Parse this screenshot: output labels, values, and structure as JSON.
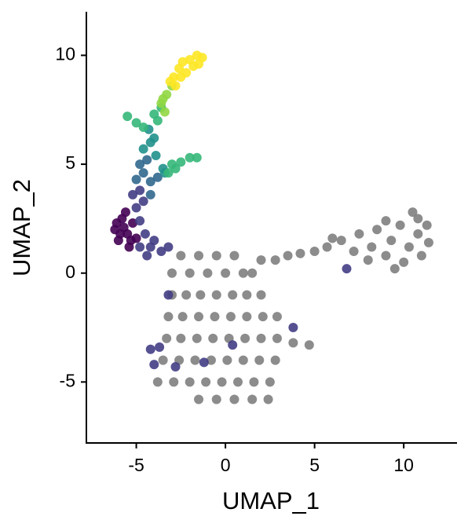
{
  "chart_data": {
    "type": "scatter",
    "x_label": "UMAP_1",
    "y_label": "UMAP_2",
    "xlim": [
      -7.8,
      12.9
    ],
    "ylim": [
      -7.8,
      12
    ],
    "xticks": [
      -5,
      0,
      5,
      10
    ],
    "yticks": [
      -5,
      0,
      5,
      10
    ],
    "grid": false,
    "series": [
      {
        "color": "#7f7f7f",
        "x": [
          -2.5,
          -1.5,
          -0.5,
          0.5,
          -3,
          -2,
          -1,
          0,
          1,
          1.5,
          -3,
          -2.2,
          -1.4,
          -0.5,
          0.4,
          1.2,
          2,
          -3.2,
          -2.4,
          -1.5,
          -0.6,
          0.3,
          1.2,
          2.1,
          2.9,
          -3.3,
          -2.5,
          -1.6,
          -0.7,
          0.2,
          1.1,
          2,
          2.9,
          3.8,
          4.7,
          -3.5,
          -2.6,
          -1.7,
          -0.8,
          0.1,
          1,
          1.9,
          2.8,
          -3.8,
          -2.9,
          -2,
          -1.1,
          -0.2,
          0.7,
          1.6,
          2.5,
          -1.5,
          -0.5,
          0.5,
          1.5,
          2.4,
          2,
          2.8,
          3.5,
          4.2,
          5,
          5.7,
          6.5,
          7.2,
          7.5,
          8.2,
          8.5,
          9,
          9.3,
          9.8,
          10,
          10.3,
          10.5,
          10.8,
          11,
          11.3,
          11.4,
          9.5,
          8,
          10.8,
          9,
          6
        ],
        "y": [
          0.8,
          0.8,
          0.8,
          0.8,
          0,
          0,
          0,
          0,
          0,
          0,
          -1,
          -1,
          -1,
          -1,
          -1,
          -1,
          -1,
          -2,
          -2,
          -2,
          -2,
          -2,
          -2,
          -2,
          -2,
          -3,
          -3,
          -3,
          -3,
          -3,
          -3,
          -3,
          -3,
          -3.2,
          -3.3,
          -4,
          -4,
          -4,
          -4,
          -4,
          -4,
          -4,
          -4,
          -5,
          -5,
          -5,
          -5,
          -5,
          -5,
          -5,
          -5,
          -5.8,
          -5.8,
          -5.8,
          -5.8,
          -5.8,
          0.6,
          0.6,
          0.8,
          0.9,
          1,
          1.2,
          1.5,
          1,
          1.8,
          1.2,
          2,
          0.8,
          1.5,
          2.2,
          0.5,
          1.2,
          2.8,
          1.8,
          0.8,
          2.2,
          1.4,
          0.2,
          0.6,
          2.5,
          2.4,
          1.6
        ]
      },
      {
        "color": "#440154",
        "x": [
          -6.2,
          -6,
          -5.8,
          -5.5,
          -5.4,
          -5.2,
          -5.9,
          -5.6,
          -5,
          -6.1,
          -5.3,
          -5.7
        ],
        "y": [
          2,
          1.5,
          2.5,
          1.8,
          1.2,
          2.3,
          1.8,
          2.8,
          1.6,
          2.3,
          1.5,
          2.1
        ]
      },
      {
        "color": "#433e85",
        "x": [
          -4.8,
          -4.5,
          -4.2,
          -4.8,
          -5,
          -4.6,
          -4,
          -3.6,
          -3.2,
          -4.4,
          -5.2,
          -4.8,
          -3.7,
          -4.2,
          -4,
          -3.2,
          -2.8,
          -1.2,
          0.4,
          3.8,
          6.8
        ],
        "y": [
          1.2,
          1.8,
          1.2,
          2.4,
          3,
          3.3,
          1.5,
          1,
          1.2,
          0.8,
          3.6,
          3.8,
          -3.4,
          -3.5,
          -4.2,
          -1,
          -4.3,
          -4.1,
          -3.3,
          -2.5,
          0.2
        ]
      },
      {
        "color": "#31688e",
        "x": [
          -5,
          -4.6,
          -4.8,
          -4.2,
          -4.4,
          -3.8,
          -4.2
        ],
        "y": [
          4.3,
          4.6,
          5,
          4.2,
          5.2,
          4.4,
          3.6
        ]
      },
      {
        "color": "#21918c",
        "x": [
          -4.6,
          -4.2,
          -3.9,
          -3.5,
          -4.3,
          -4,
          -3.4
        ],
        "y": [
          5.7,
          6,
          5.4,
          4.8,
          6.6,
          6.2,
          4.6
        ]
      },
      {
        "color": "#35b779",
        "x": [
          -5.5,
          -5,
          -4.6,
          -4,
          -3.6,
          -3,
          -2.5,
          -2,
          -1.6,
          -3.2,
          -2.8,
          -3.8
        ],
        "y": [
          7.2,
          6.9,
          6.7,
          7.3,
          7.6,
          5,
          5.1,
          5.3,
          5.3,
          4.6,
          4.8,
          7
        ]
      },
      {
        "color": "#90d743",
        "x": [
          -3.6,
          -3.3,
          -3.4,
          -3,
          -3.5
        ],
        "y": [
          7.8,
          8.2,
          7.4,
          8.6,
          8
        ]
      },
      {
        "color": "#fde725",
        "x": [
          -2.9,
          -2.6,
          -2.4,
          -2,
          -1.6,
          -1.3,
          -2.8,
          -2.2,
          -1.8,
          -3.1,
          -2.5,
          -1.5
        ],
        "y": [
          9,
          9.4,
          9.7,
          9.8,
          10,
          9.9,
          8.6,
          9.2,
          9.5,
          8.8,
          9,
          9.6
        ]
      }
    ]
  }
}
